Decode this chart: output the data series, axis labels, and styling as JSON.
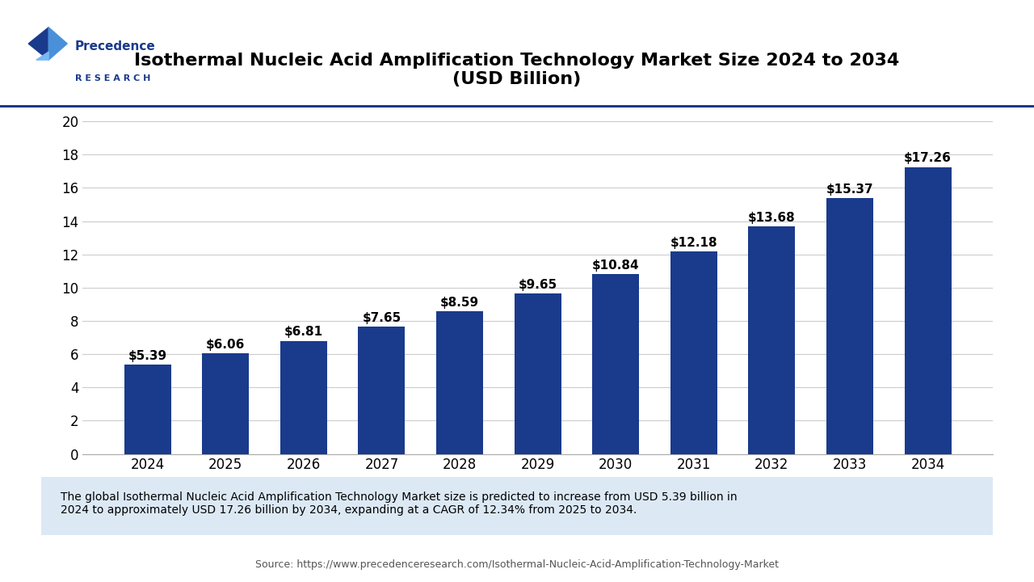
{
  "title": "Isothermal Nucleic Acid Amplification Technology Market Size 2024 to 2034\n(USD Billion)",
  "years": [
    2024,
    2025,
    2026,
    2027,
    2028,
    2029,
    2030,
    2031,
    2032,
    2033,
    2034
  ],
  "values": [
    5.39,
    6.06,
    6.81,
    7.65,
    8.59,
    9.65,
    10.84,
    12.18,
    13.68,
    15.37,
    17.26
  ],
  "labels": [
    "$5.39",
    "$6.06",
    "$6.81",
    "$7.65",
    "$8.59",
    "$9.65",
    "$10.84",
    "$12.18",
    "$13.68",
    "$15.37",
    "$17.26"
  ],
  "bar_color": "#1a3a8c",
  "background_color": "#ffffff",
  "plot_bg_color": "#ffffff",
  "yticks": [
    0,
    2,
    4,
    6,
    8,
    10,
    12,
    14,
    16,
    18,
    20
  ],
  "ylim": [
    0,
    21
  ],
  "grid_color": "#cccccc",
  "title_fontsize": 16,
  "tick_fontsize": 12,
  "label_fontsize": 11,
  "footnote_text": "The global Isothermal Nucleic Acid Amplification Technology Market size is predicted to increase from USD 5.39 billion in\n2024 to approximately USD 17.26 billion by 2034, expanding at a CAGR of 12.34% from 2025 to 2034.",
  "source_text": "Source: https://www.precedenceresearch.com/Isothermal-Nucleic-Acid-Amplification-Technology-Market",
  "footnote_bg": "#dce9f5",
  "logo_text_1": "Precedence",
  "logo_text_2": "R E S E A R C H"
}
